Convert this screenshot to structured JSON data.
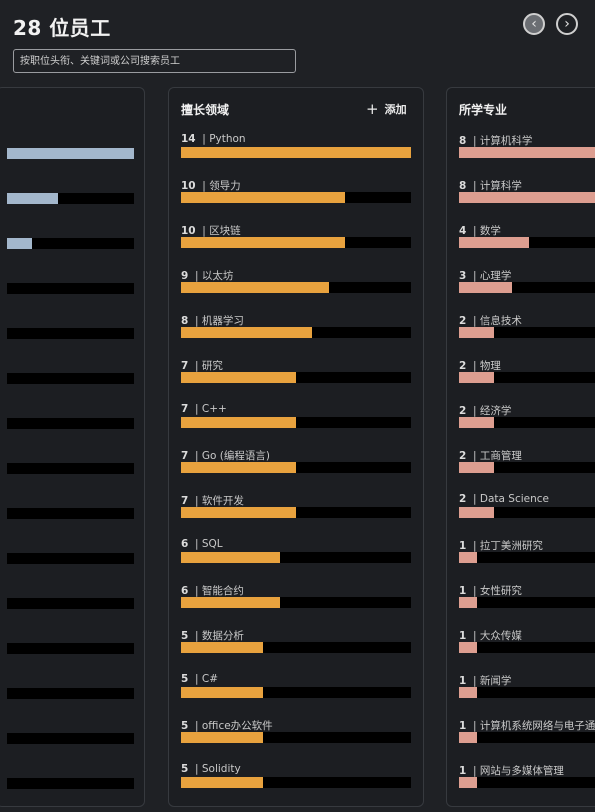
{
  "header": {
    "title": "28 位员工",
    "prev_icon": "chevron-left-icon",
    "next_icon": "chevron-right-icon"
  },
  "search": {
    "placeholder": "按职位头衔、关键词或公司搜索员工"
  },
  "left_panel": {
    "bars": [
      1.0,
      0.4,
      0.2,
      0,
      0,
      0,
      0,
      0,
      0,
      0,
      0,
      0,
      0,
      0,
      0
    ]
  },
  "skills": {
    "title": "擅长领域",
    "add_label": "添加",
    "max": 14,
    "items": [
      {
        "count": "14",
        "label": "Python"
      },
      {
        "count": "10",
        "label": "领导力"
      },
      {
        "count": "10",
        "label": "区块链"
      },
      {
        "count": "9",
        "label": "以太坊"
      },
      {
        "count": "8",
        "label": "机器学习"
      },
      {
        "count": "7",
        "label": "研究"
      },
      {
        "count": "7",
        "label": "C++"
      },
      {
        "count": "7",
        "label": "Go (编程语言)"
      },
      {
        "count": "7",
        "label": "软件开发"
      },
      {
        "count": "6",
        "label": "SQL"
      },
      {
        "count": "6",
        "label": "智能合约"
      },
      {
        "count": "5",
        "label": "数据分析"
      },
      {
        "count": "5",
        "label": "C#"
      },
      {
        "count": "5",
        "label": "office办公软件"
      },
      {
        "count": "5",
        "label": "Solidity"
      }
    ]
  },
  "majors": {
    "title": "所学专业",
    "max": 8,
    "items": [
      {
        "count": "8",
        "label": "计算机科学"
      },
      {
        "count": "8",
        "label": "计算科学"
      },
      {
        "count": "4",
        "label": "数学"
      },
      {
        "count": "3",
        "label": "心理学"
      },
      {
        "count": "2",
        "label": "信息技术"
      },
      {
        "count": "2",
        "label": "物理"
      },
      {
        "count": "2",
        "label": "经济学"
      },
      {
        "count": "2",
        "label": "工商管理"
      },
      {
        "count": "2",
        "label": "Data Science"
      },
      {
        "count": "1",
        "label": "拉丁美洲研究"
      },
      {
        "count": "1",
        "label": "女性研究"
      },
      {
        "count": "1",
        "label": "大众传媒"
      },
      {
        "count": "1",
        "label": "新闻学"
      },
      {
        "count": "1",
        "label": "计算机系统网络与电子通讯"
      },
      {
        "count": "1",
        "label": "网站与多媒体管理"
      }
    ]
  },
  "colors": {
    "skills_bar": "#e8a23e",
    "majors_bar": "#dd9e90",
    "left_bar": "#a3b7cc",
    "track": "#000000"
  }
}
